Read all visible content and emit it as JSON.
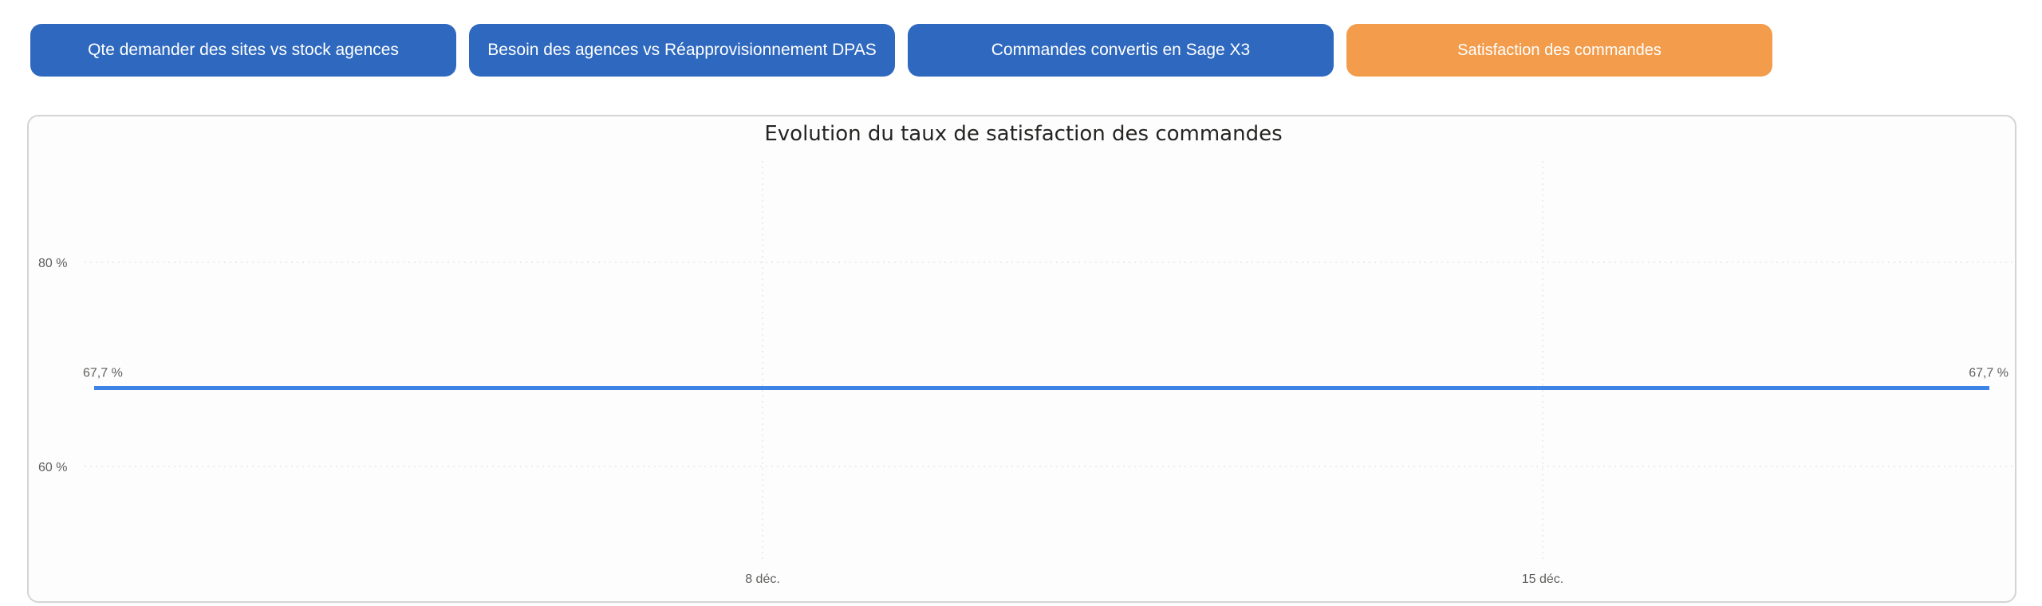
{
  "nav": {
    "buttons": [
      {
        "label": "Qte demander des sites vs stock agences",
        "color": "#2f69bf",
        "active": false
      },
      {
        "label": "Besoin des agences vs Réapprovisionnement DPAS",
        "color": "#2f69bf",
        "active": false
      },
      {
        "label": "Commandes convertis en Sage X3",
        "color": "#2f69bf",
        "active": false
      },
      {
        "label": "Satisfaction des commandes",
        "color": "#f29c4c",
        "active": true
      }
    ]
  },
  "chart_data": {
    "type": "line",
    "title": "Evolution du taux de satisfaction des commandes",
    "xlabel": "",
    "ylabel": "",
    "x_ticks": [
      "8 déc.",
      "15 déc."
    ],
    "y_ticks": [
      "80 %",
      "60 %"
    ],
    "y_tick_values": [
      80,
      60
    ],
    "series": [
      {
        "color": "#3c85e6",
        "points": [
          {
            "x": "2 déc.",
            "y": 67.7,
            "label": "67,7 %"
          },
          {
            "x": "19 déc.",
            "y": 67.7,
            "label": "67,7 %"
          }
        ]
      }
    ],
    "grid": true
  }
}
